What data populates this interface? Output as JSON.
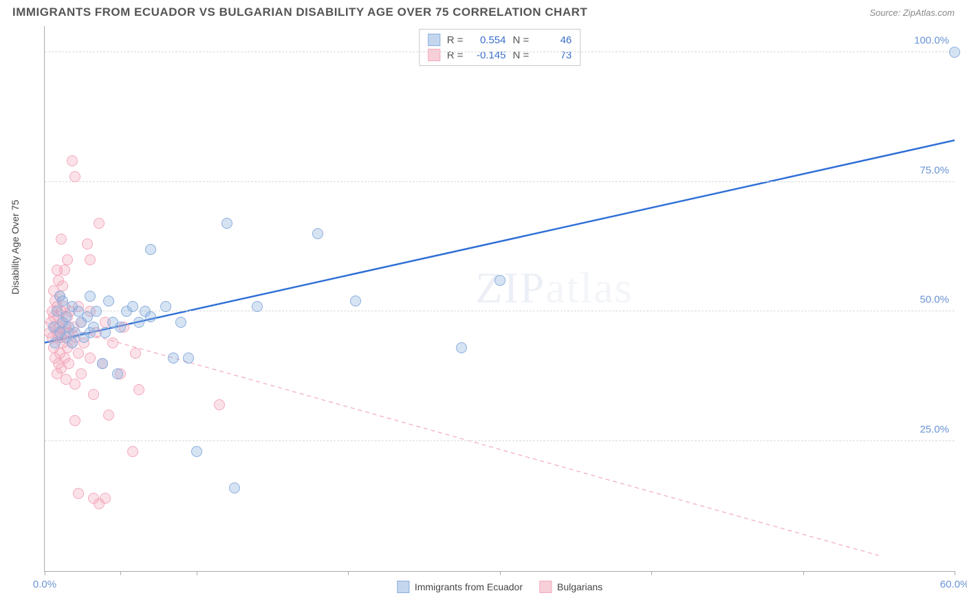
{
  "header": {
    "title": "IMMIGRANTS FROM ECUADOR VS BULGARIAN DISABILITY AGE OVER 75 CORRELATION CHART",
    "source_prefix": "Source: ",
    "source_name": "ZipAtlas.com"
  },
  "watermark": {
    "bold": "ZIP",
    "light": "atlas"
  },
  "axes": {
    "ylabel": "Disability Age Over 75",
    "xlim": [
      0,
      60
    ],
    "ylim": [
      0,
      105
    ],
    "yticks": [
      {
        "v": 25,
        "label": "25.0%"
      },
      {
        "v": 50,
        "label": "50.0%"
      },
      {
        "v": 75,
        "label": "75.0%"
      },
      {
        "v": 100,
        "label": "100.0%"
      }
    ],
    "xticks": [
      {
        "v": 0,
        "label": "0.0%"
      },
      {
        "v": 5,
        "label": ""
      },
      {
        "v": 10,
        "label": ""
      },
      {
        "v": 20,
        "label": ""
      },
      {
        "v": 30,
        "label": ""
      },
      {
        "v": 40,
        "label": ""
      },
      {
        "v": 50,
        "label": ""
      },
      {
        "v": 60,
        "label": "60.0%"
      }
    ],
    "label_color": "#6a93d4",
    "grid_color": "#d8d8d8"
  },
  "series": {
    "blue": {
      "name": "Immigrants from Ecuador",
      "color_fill": "rgba(138,174,222,0.35)",
      "color_stroke": "#8aaede",
      "R_label": "R =",
      "R": "0.554",
      "N_label": "N =",
      "N": "46",
      "trend": {
        "x1": 0,
        "y1": 44,
        "x2": 60,
        "y2": 83,
        "stroke": "#2e6fd6",
        "width": 2.5,
        "dash": ""
      },
      "points": [
        [
          0.6,
          47
        ],
        [
          0.7,
          44
        ],
        [
          0.8,
          50
        ],
        [
          1.0,
          46
        ],
        [
          1.0,
          53
        ],
        [
          1.2,
          48
        ],
        [
          1.2,
          52
        ],
        [
          1.4,
          45
        ],
        [
          1.4,
          49
        ],
        [
          1.6,
          47
        ],
        [
          1.8,
          44
        ],
        [
          1.8,
          51
        ],
        [
          2.0,
          46
        ],
        [
          2.2,
          50
        ],
        [
          2.4,
          48
        ],
        [
          2.6,
          45
        ],
        [
          2.8,
          49
        ],
        [
          3.0,
          46
        ],
        [
          3.0,
          53
        ],
        [
          3.2,
          47
        ],
        [
          3.4,
          50
        ],
        [
          3.8,
          40
        ],
        [
          4.0,
          46
        ],
        [
          4.2,
          52
        ],
        [
          4.5,
          48
        ],
        [
          5.0,
          47
        ],
        [
          5.4,
          50
        ],
        [
          5.8,
          51
        ],
        [
          6.2,
          48
        ],
        [
          6.6,
          50
        ],
        [
          7.0,
          62
        ],
        [
          7.0,
          49
        ],
        [
          8.0,
          51
        ],
        [
          8.5,
          41
        ],
        [
          9.0,
          48
        ],
        [
          9.5,
          41
        ],
        [
          12.0,
          67
        ],
        [
          12.5,
          16
        ],
        [
          10.0,
          23
        ],
        [
          14.0,
          51
        ],
        [
          18.0,
          65
        ],
        [
          20.5,
          52
        ],
        [
          27.5,
          43
        ],
        [
          30.0,
          56
        ],
        [
          60.0,
          100
        ],
        [
          4.8,
          38
        ]
      ]
    },
    "pink": {
      "name": "Bulgarians",
      "color_fill": "rgba(240,160,180,0.3)",
      "color_stroke": "#f5a8bd",
      "R_label": "R =",
      "R": "-0.145",
      "N_label": "N =",
      "N": "73",
      "trend": {
        "x1": 0,
        "y1": 48,
        "x2": 55,
        "y2": 3,
        "stroke": "#f2a8bd",
        "width": 1.2,
        "dash": "6,5"
      },
      "points": [
        [
          0.3,
          46
        ],
        [
          0.4,
          48
        ],
        [
          0.5,
          45
        ],
        [
          0.5,
          50
        ],
        [
          0.6,
          43
        ],
        [
          0.6,
          49
        ],
        [
          0.6,
          54
        ],
        [
          0.7,
          41
        ],
        [
          0.7,
          47
        ],
        [
          0.7,
          52
        ],
        [
          0.8,
          38
        ],
        [
          0.8,
          46
        ],
        [
          0.8,
          51
        ],
        [
          0.8,
          58
        ],
        [
          0.9,
          40
        ],
        [
          0.9,
          45
        ],
        [
          0.9,
          49
        ],
        [
          0.9,
          56
        ],
        [
          1.0,
          42
        ],
        [
          1.0,
          47
        ],
        [
          1.0,
          53
        ],
        [
          1.1,
          39
        ],
        [
          1.1,
          45
        ],
        [
          1.1,
          50
        ],
        [
          1.1,
          64
        ],
        [
          1.2,
          44
        ],
        [
          1.2,
          48
        ],
        [
          1.2,
          55
        ],
        [
          1.3,
          41
        ],
        [
          1.3,
          46
        ],
        [
          1.3,
          51
        ],
        [
          1.4,
          37
        ],
        [
          1.4,
          47
        ],
        [
          1.5,
          43
        ],
        [
          1.5,
          49
        ],
        [
          1.6,
          40
        ],
        [
          1.6,
          46
        ],
        [
          1.7,
          50
        ],
        [
          1.8,
          44
        ],
        [
          1.8,
          79
        ],
        [
          1.9,
          47
        ],
        [
          2.0,
          36
        ],
        [
          2.0,
          45
        ],
        [
          2.0,
          76
        ],
        [
          2.2,
          42
        ],
        [
          2.2,
          51
        ],
        [
          2.4,
          38
        ],
        [
          2.4,
          48
        ],
        [
          2.6,
          44
        ],
        [
          2.8,
          63
        ],
        [
          3.0,
          41
        ],
        [
          3.0,
          50
        ],
        [
          3.2,
          34
        ],
        [
          3.4,
          46
        ],
        [
          3.6,
          67
        ],
        [
          3.8,
          40
        ],
        [
          4.0,
          48
        ],
        [
          4.2,
          30
        ],
        [
          4.5,
          44
        ],
        [
          5.0,
          38
        ],
        [
          5.2,
          47
        ],
        [
          5.8,
          23
        ],
        [
          6.0,
          42
        ],
        [
          6.2,
          35
        ],
        [
          3.2,
          14
        ],
        [
          3.6,
          13
        ],
        [
          4.0,
          14
        ],
        [
          2.2,
          15
        ],
        [
          2.0,
          29
        ],
        [
          11.5,
          32
        ],
        [
          3.0,
          60
        ],
        [
          1.5,
          60
        ],
        [
          1.3,
          58
        ]
      ]
    }
  },
  "legend_bottom": [
    {
      "cls": "blue",
      "label": "Immigrants from Ecuador"
    },
    {
      "cls": "pink",
      "label": "Bulgarians"
    }
  ]
}
